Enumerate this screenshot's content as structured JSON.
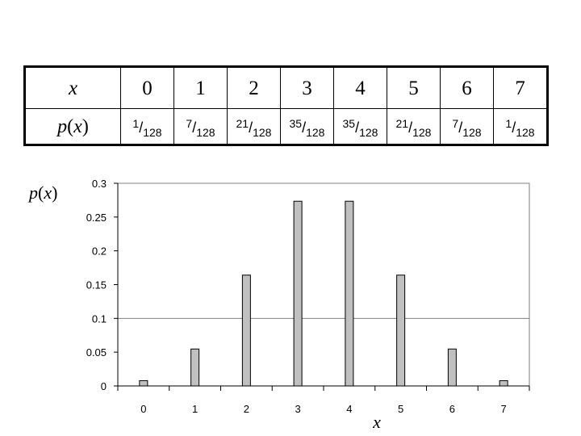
{
  "table": {
    "x_label": "x",
    "p_label_prefix": "p",
    "p_label_var": "x",
    "x_values": [
      "0",
      "1",
      "2",
      "3",
      "4",
      "5",
      "6",
      "7"
    ],
    "probabilities": [
      {
        "num": "1",
        "den": "128"
      },
      {
        "num": "7",
        "den": "128"
      },
      {
        "num": "21",
        "den": "128"
      },
      {
        "num": "35",
        "den": "128"
      },
      {
        "num": "35",
        "den": "128"
      },
      {
        "num": "21",
        "den": "128"
      },
      {
        "num": "7",
        "den": "128"
      },
      {
        "num": "1",
        "den": "128"
      }
    ]
  },
  "chart_data": {
    "type": "bar",
    "categories": [
      "0",
      "1",
      "2",
      "3",
      "4",
      "5",
      "6",
      "7"
    ],
    "values": [
      0.0078125,
      0.0546875,
      0.1640625,
      0.2734375,
      0.2734375,
      0.1640625,
      0.0546875,
      0.0078125
    ],
    "ylim": [
      0,
      0.3
    ],
    "yticks": [
      0,
      0.05,
      0.1,
      0.15,
      0.2,
      0.25,
      0.3
    ],
    "ytick_labels": [
      "0",
      "0.05",
      "0.1",
      "0.15",
      "0.2",
      "0.25",
      "0.3"
    ],
    "xlabel": "x",
    "ylabel_prefix": "p",
    "ylabel_var": "x",
    "gridlines": [
      0.1
    ],
    "bar_color": "#c0c0c0",
    "bar_stroke": "#000000",
    "grid_color": "#808080"
  }
}
